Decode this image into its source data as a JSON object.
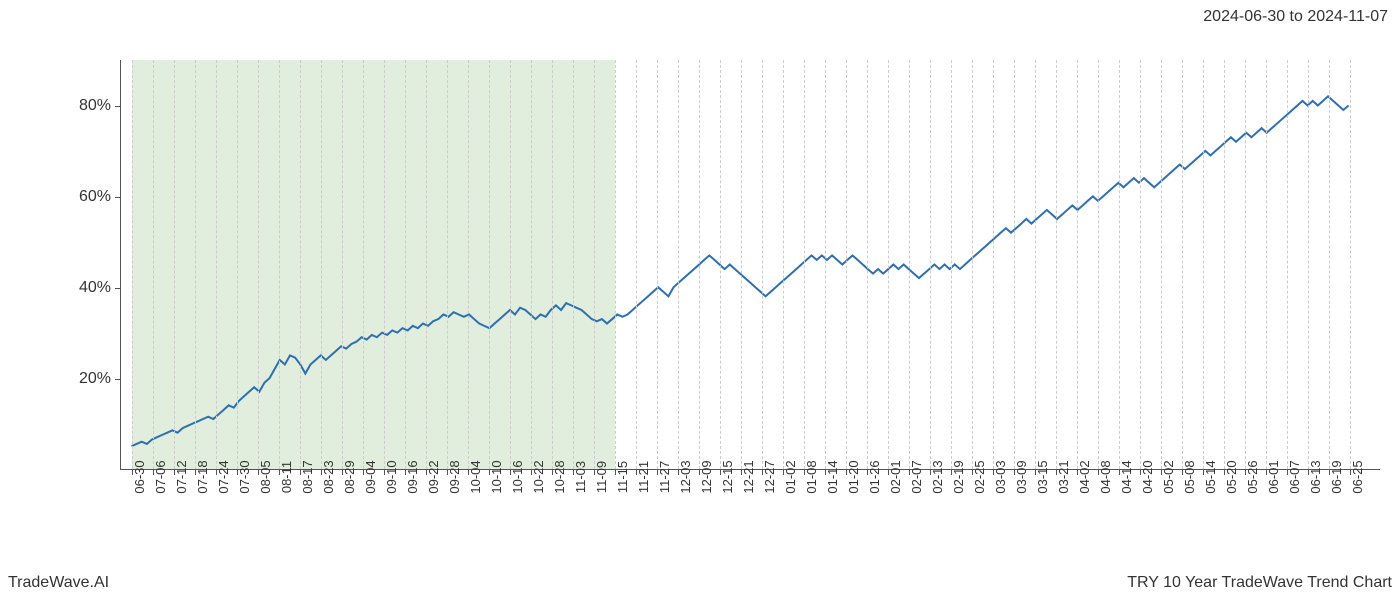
{
  "header": {
    "date_range": "2024-06-30 to 2024-11-07"
  },
  "footer": {
    "brand": "TradeWave.AI",
    "chart_title": "TRY 10 Year TradeWave Trend Chart"
  },
  "chart": {
    "type": "line",
    "background_color": "#ffffff",
    "grid_color": "#cccccc",
    "axis_color": "#555555",
    "line_color": "#2e6fb0",
    "line_width": 2,
    "highlight_fill": "rgba(180, 210, 170, 0.4)",
    "highlight_start_index": 0,
    "highlight_end_index": 23,
    "label_fontsize": 16,
    "xtick_fontsize": 13,
    "ylim": [
      0,
      90
    ],
    "yticks": [
      20,
      40,
      60,
      80
    ],
    "ytick_labels": [
      "20%",
      "40%",
      "60%",
      "80%"
    ],
    "x_labels": [
      "06-30",
      "07-06",
      "07-12",
      "07-18",
      "07-24",
      "07-30",
      "08-05",
      "08-11",
      "08-17",
      "08-23",
      "08-29",
      "09-04",
      "09-10",
      "09-16",
      "09-22",
      "09-28",
      "10-04",
      "10-10",
      "10-16",
      "10-22",
      "10-28",
      "11-03",
      "11-09",
      "11-15",
      "11-21",
      "11-27",
      "12-03",
      "12-09",
      "12-15",
      "12-21",
      "12-27",
      "01-02",
      "01-08",
      "01-14",
      "01-20",
      "01-26",
      "02-01",
      "02-07",
      "02-13",
      "02-19",
      "02-25",
      "03-03",
      "03-09",
      "03-15",
      "03-21",
      "04-02",
      "04-08",
      "04-14",
      "04-20",
      "05-02",
      "05-08",
      "05-14",
      "05-20",
      "05-26",
      "06-01",
      "06-07",
      "06-13",
      "06-19",
      "06-25"
    ],
    "values": [
      5,
      5.5,
      6,
      5.5,
      6.5,
      7,
      7.5,
      8,
      8.5,
      8,
      9,
      9.5,
      10,
      10.5,
      11,
      11.5,
      11,
      12,
      13,
      14,
      13.5,
      15,
      16,
      17,
      18,
      17,
      19,
      20,
      22,
      24,
      23,
      25,
      24.5,
      23,
      21,
      23,
      24,
      25,
      24,
      25,
      26,
      27,
      26.5,
      27.5,
      28,
      29,
      28.5,
      29.5,
      29,
      30,
      29.5,
      30.5,
      30,
      31,
      30.5,
      31.5,
      31,
      32,
      31.5,
      32.5,
      33,
      34,
      33.5,
      34.5,
      34,
      33.5,
      34,
      33,
      32,
      31.5,
      31,
      32,
      33,
      34,
      35,
      34,
      35.5,
      35,
      34,
      33,
      34,
      33.5,
      35,
      36,
      35,
      36.5,
      36,
      35.5,
      35,
      34,
      33,
      32.5,
      33,
      32,
      33,
      34,
      33.5,
      34,
      35,
      36,
      37,
      38,
      39,
      40,
      39,
      38,
      40,
      41,
      42,
      43,
      44,
      45,
      46,
      47,
      46,
      45,
      44,
      45,
      44,
      43,
      42,
      41,
      40,
      39,
      38,
      39,
      40,
      41,
      42,
      43,
      44,
      45,
      46,
      47,
      46,
      47,
      46,
      47,
      46,
      45,
      46,
      47,
      46,
      45,
      44,
      43,
      44,
      43,
      44,
      45,
      44,
      45,
      44,
      43,
      42,
      43,
      44,
      45,
      44,
      45,
      44,
      45,
      44,
      45,
      46,
      47,
      48,
      49,
      50,
      51,
      52,
      53,
      52,
      53,
      54,
      55,
      54,
      55,
      56,
      57,
      56,
      55,
      56,
      57,
      58,
      57,
      58,
      59,
      60,
      59,
      60,
      61,
      62,
      63,
      62,
      63,
      64,
      63,
      64,
      63,
      62,
      63,
      64,
      65,
      66,
      67,
      66,
      67,
      68,
      69,
      70,
      69,
      70,
      71,
      72,
      73,
      72,
      73,
      74,
      73,
      74,
      75,
      74,
      75,
      76,
      77,
      78,
      79,
      80,
      81,
      80,
      81,
      80,
      81,
      82,
      81,
      80,
      79,
      80
    ]
  }
}
